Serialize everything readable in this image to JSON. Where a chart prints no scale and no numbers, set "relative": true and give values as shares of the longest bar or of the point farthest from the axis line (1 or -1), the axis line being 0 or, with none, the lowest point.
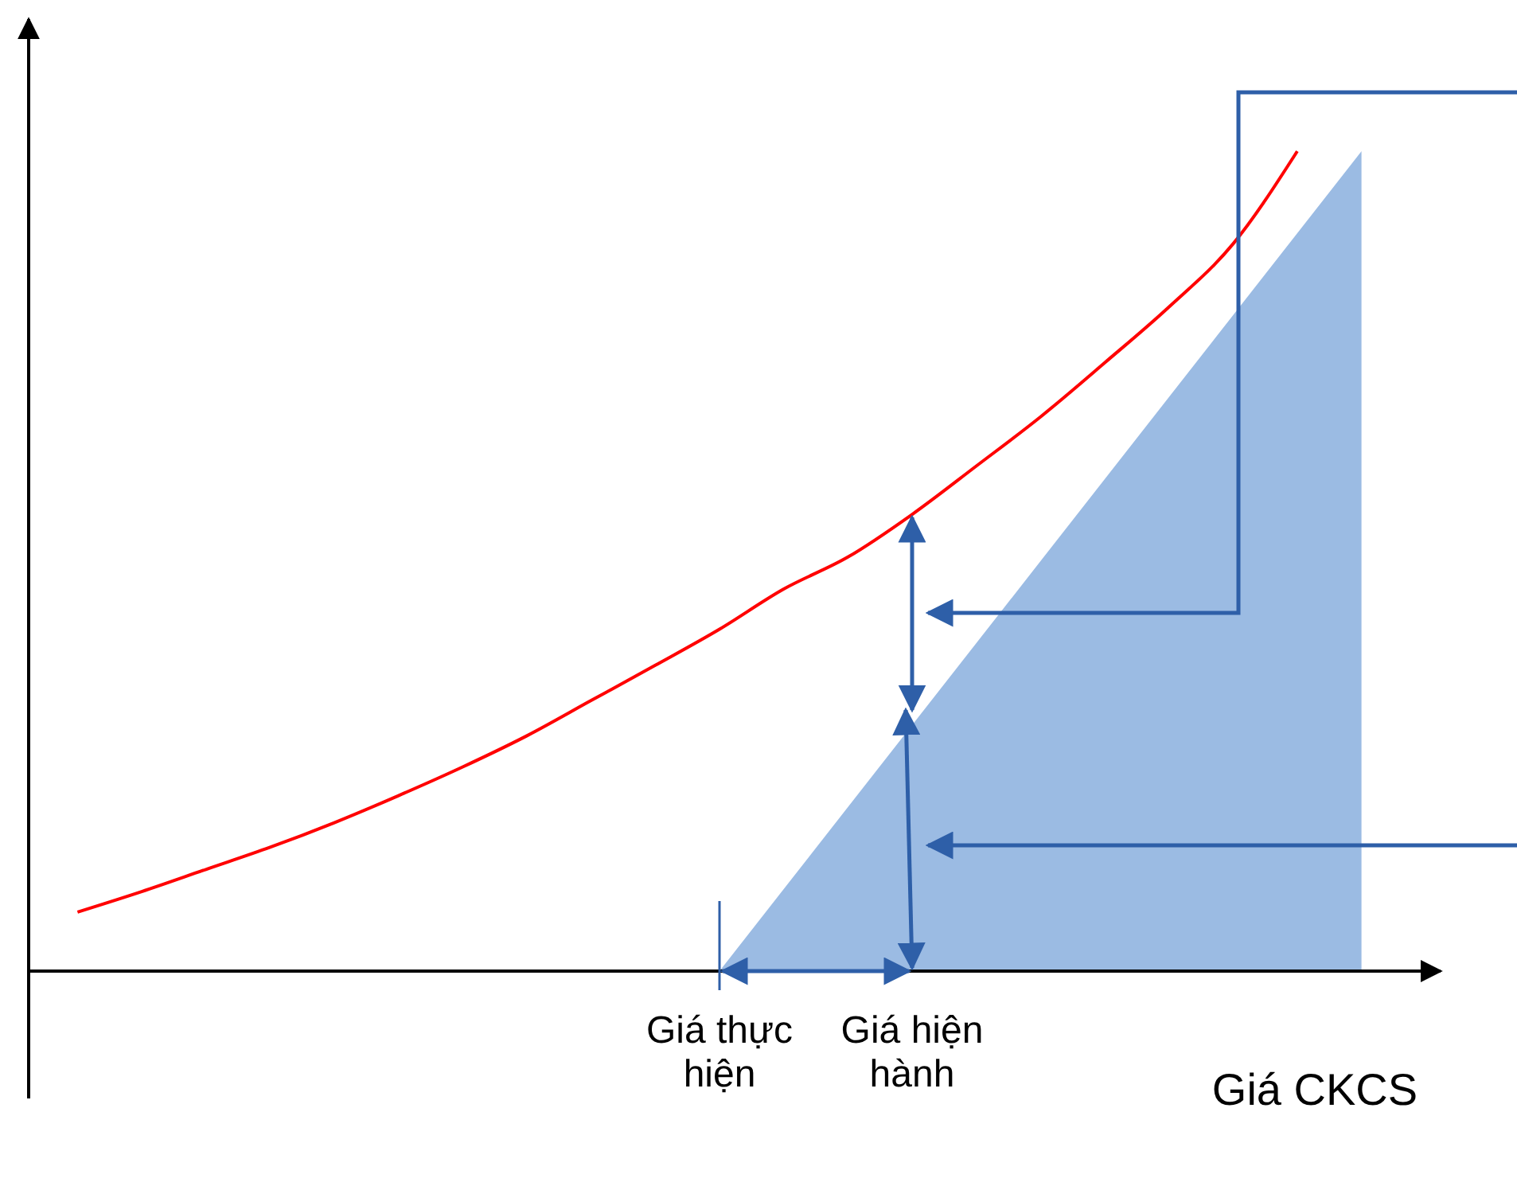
{
  "chart_data": {
    "type": "line",
    "relative": true,
    "xlabel": "Giá CKCS",
    "categories": [
      null,
      null,
      null,
      null,
      null,
      null,
      null,
      null,
      null,
      null,
      "Giá thực hiện",
      null,
      null,
      "Giá hiện hành",
      null,
      null,
      null,
      null,
      null,
      null,
      null
    ],
    "series": [
      {
        "type": "area",
        "color": "#9bbbe3",
        "values": [
          null,
          null,
          null,
          null,
          null,
          null,
          null,
          null,
          null,
          null,
          0,
          0.1,
          0.2,
          0.3,
          0.4,
          0.5,
          0.6,
          0.7,
          0.8,
          0.9,
          1.0
        ]
      },
      {
        "color": "#ff0000",
        "values": [
          0.072,
          0.097,
          0.124,
          0.151,
          0.181,
          0.214,
          0.249,
          0.287,
          0.33,
          0.373,
          0.417,
          0.466,
          0.505,
          0.557,
          0.616,
          0.676,
          0.742,
          0.81,
          0.887,
          1.0,
          null
        ]
      }
    ]
  }
}
